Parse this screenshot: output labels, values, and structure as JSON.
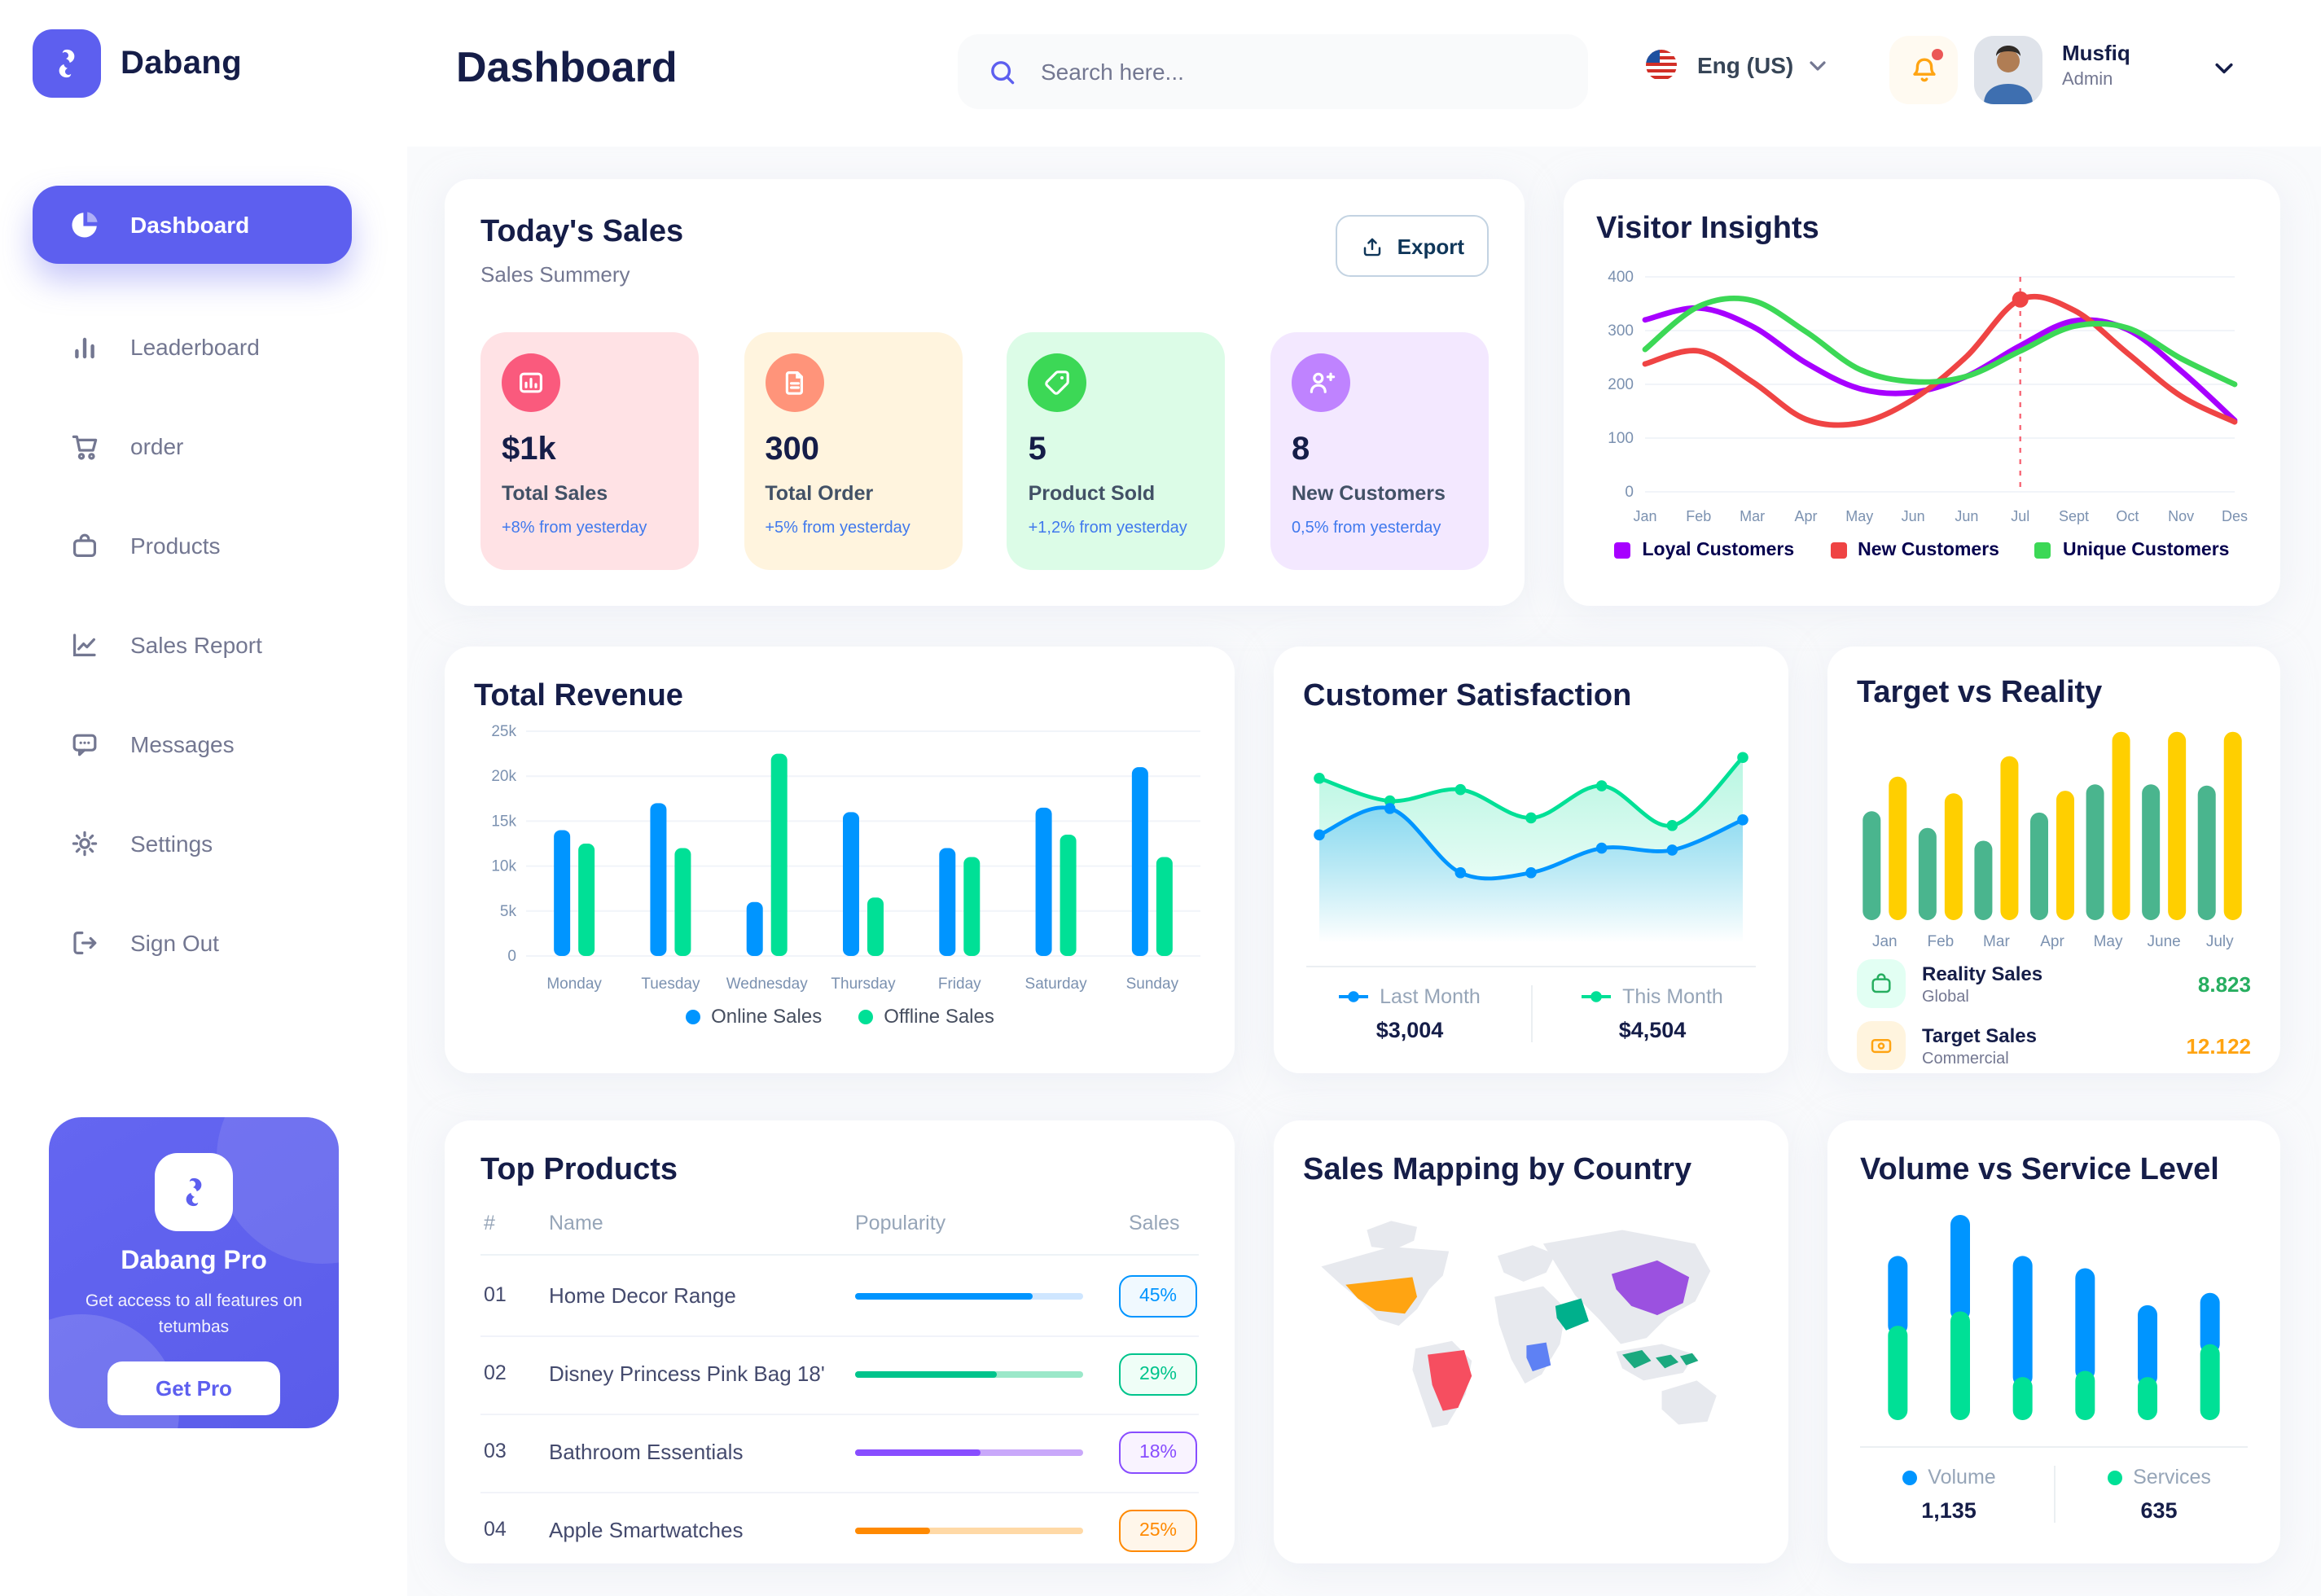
{
  "app": {
    "brand": "Dabang",
    "page_title": "Dashboard"
  },
  "header": {
    "search": {
      "placeholder": "Search here..."
    },
    "language": {
      "label": "Eng (US)"
    },
    "user": {
      "name": "Musfiq",
      "role": "Admin"
    }
  },
  "sidebar": {
    "items": [
      {
        "label": "Dashboard",
        "icon": "pie",
        "active": true
      },
      {
        "label": "Leaderboard",
        "icon": "bars",
        "active": false
      },
      {
        "label": "order",
        "icon": "cart",
        "active": false
      },
      {
        "label": "Products",
        "icon": "bag",
        "active": false
      },
      {
        "label": "Sales Report",
        "icon": "linechart",
        "active": false
      },
      {
        "label": "Messages",
        "icon": "message",
        "active": false
      },
      {
        "label": "Settings",
        "icon": "gear",
        "active": false
      },
      {
        "label": "Sign Out",
        "icon": "signout",
        "active": false
      }
    ],
    "pro": {
      "title": "Dabang Pro",
      "description": "Get access to all features on tetumbas",
      "cta": "Get Pro"
    }
  },
  "cards": {
    "todays_sales": {
      "title": "Today's Sales",
      "subtitle": "Sales Summery",
      "export_label": "Export",
      "stats": [
        {
          "value": "$1k",
          "label": "Total Sales",
          "delta": "+8% from yesterday",
          "bg": "#FFE2E5",
          "icon_bg": "#FA5A7D",
          "icon": "statchart"
        },
        {
          "value": "300",
          "label": "Total Order",
          "delta": "+5% from yesterday",
          "bg": "#FFF4DE",
          "icon_bg": "#FF947A",
          "icon": "statfile"
        },
        {
          "value": "5",
          "label": "Product Sold",
          "delta": "+1,2% from yesterday",
          "bg": "#DCFCE7",
          "icon_bg": "#3CD856",
          "icon": "stattag"
        },
        {
          "value": "8",
          "label": "New Customers",
          "delta": "0,5% from yesterday",
          "bg": "#F3E8FF",
          "icon_bg": "#BF83FF",
          "icon": "statuser"
        }
      ]
    },
    "top_products": {
      "title": "Top Products",
      "columns": [
        "#",
        "Name",
        "Popularity",
        "Sales"
      ],
      "rows": [
        {
          "index": "01",
          "name": "Home Decor Range",
          "popularity": 78,
          "sales": "45%",
          "color": "#0095FF",
          "track": "#CFE6FF",
          "badge_bg": "#F0F9FF"
        },
        {
          "index": "02",
          "name": "Disney Princess Pink Bag 18'",
          "popularity": 62,
          "sales": "29%",
          "color": "#00C48C",
          "track": "#9BE8C9",
          "badge_bg": "#EFFEF7"
        },
        {
          "index": "03",
          "name": "Bathroom Essentials",
          "popularity": 55,
          "sales": "18%",
          "color": "#884DFF",
          "track": "#C9A8FA",
          "badge_bg": "#F9F3FF"
        },
        {
          "index": "04",
          "name": "Apple Smartwatches",
          "popularity": 33,
          "sales": "25%",
          "color": "#FF8900",
          "track": "#FFD9A6",
          "badge_bg": "#FFF6EA"
        }
      ]
    },
    "sales_mapping": {
      "title": "Sales Mapping by Country"
    }
  },
  "chart_data": [
    {
      "type": "line",
      "title": "Visitor Insights",
      "x": [
        "Jan",
        "Feb",
        "Mar",
        "Apr",
        "May",
        "Jun",
        "Jun",
        "Jul",
        "Sept",
        "Oct",
        "Nov",
        "Des"
      ],
      "ylim": [
        0,
        400
      ],
      "yticks": [
        0,
        100,
        200,
        300,
        400
      ],
      "series": [
        {
          "name": "Loyal Customers",
          "color": "#A700FF",
          "values": [
            320,
            342,
            308,
            240,
            192,
            185,
            215,
            272,
            318,
            302,
            225,
            133
          ]
        },
        {
          "name": "New Customers",
          "color": "#EF4444",
          "values": [
            238,
            262,
            205,
            135,
            128,
            172,
            252,
            358,
            338,
            258,
            178,
            130
          ]
        },
        {
          "name": "Unique Customers",
          "color": "#3CD856",
          "values": [
            265,
            345,
            356,
            298,
            228,
            205,
            215,
            262,
            308,
            305,
            248,
            200
          ]
        }
      ],
      "annotation": {
        "series": "New Customers",
        "index": 7,
        "marker": true,
        "vline": true
      }
    },
    {
      "type": "bar",
      "title": "Total Revenue",
      "categories": [
        "Monday",
        "Tuesday",
        "Wednesday",
        "Thursday",
        "Friday",
        "Saturday",
        "Sunday"
      ],
      "ylim": [
        0,
        25
      ],
      "yticks": [
        "0",
        "5k",
        "10k",
        "15k",
        "20k",
        "25k"
      ],
      "series": [
        {
          "name": "Online Sales",
          "color": "#0095FF",
          "values": [
            14,
            17,
            6,
            16,
            12,
            16.5,
            21
          ]
        },
        {
          "name": "Offline Sales",
          "color": "#00E096",
          "values": [
            12.5,
            12,
            22.5,
            6.5,
            11,
            13.5,
            11
          ]
        }
      ]
    },
    {
      "type": "area",
      "title": "Customer Satisfaction",
      "series": [
        {
          "name": "Last Month",
          "color": "#0095FF",
          "value": "$3,004",
          "values": [
            52,
            66,
            32,
            32,
            45,
            44,
            60
          ]
        },
        {
          "name": "This Month",
          "color": "#00E096",
          "value": "$4,504",
          "values": [
            82,
            70,
            76,
            61,
            78,
            57,
            93
          ]
        }
      ]
    },
    {
      "type": "bar",
      "title": "Target vs Reality",
      "categories": [
        "Jan",
        "Feb",
        "Mar",
        "Apr",
        "May",
        "June",
        "July"
      ],
      "ylim": [
        0,
        15
      ],
      "series": [
        {
          "name": "Reality Sales",
          "color": "#4AB58E",
          "values": [
            8.5,
            7.2,
            6.2,
            8.4,
            10.6,
            10.6,
            10.5
          ]
        },
        {
          "name": "Target Sales",
          "color": "#FFCF00",
          "values": [
            11.2,
            9.9,
            12.8,
            10.1,
            14.7,
            14.7,
            14.7
          ]
        }
      ],
      "legend": [
        {
          "title": "Reality Sales",
          "subtitle": "Global",
          "value": "8.823",
          "value_color": "#27AE60",
          "icon_bg": "#E2FFF3",
          "icon": "bagmini"
        },
        {
          "title": "Target Sales",
          "subtitle": "Commercial",
          "value": "12.122",
          "value_color": "#FFA412",
          "icon_bg": "#FFF4DE",
          "icon": "ticketmini"
        }
      ]
    },
    {
      "type": "stacked-bar",
      "title": "Volume vs Service Level",
      "series": [
        {
          "name": "Volume",
          "color": "#0095FF",
          "total": "1,135",
          "values": [
            34,
            47,
            59,
            50,
            35,
            25
          ]
        },
        {
          "name": "Services",
          "color": "#00E096",
          "total": "635",
          "values": [
            46,
            53,
            21,
            24,
            21,
            37
          ]
        }
      ]
    },
    {
      "type": "map",
      "title": "Sales Mapping by Country",
      "countries": [
        {
          "name": "United States",
          "color": "#FFA412"
        },
        {
          "name": "Brazil",
          "color": "#F64E60"
        },
        {
          "name": "Saudi Arabia",
          "color": "#00B08C"
        },
        {
          "name": "DR Congo",
          "color": "#5E81F4"
        },
        {
          "name": "China",
          "color": "#9B51E0"
        },
        {
          "name": "Indonesia",
          "color": "#1BA97F"
        }
      ]
    }
  ]
}
